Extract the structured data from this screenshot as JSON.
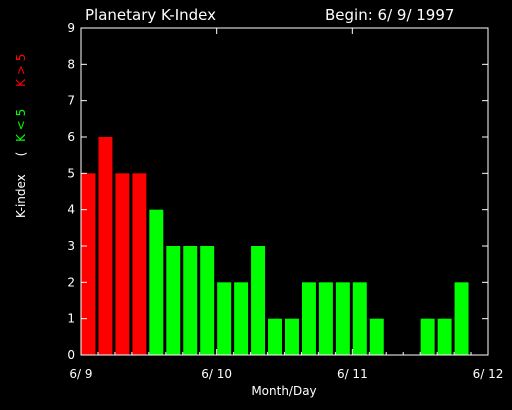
{
  "chart_data": {
    "type": "bar",
    "title": "Planetary K-Index",
    "begin_label": "Begin: 6/ 9/ 1997",
    "xlabel": "Month/Day",
    "ylabel": {
      "main": "K-index",
      "open_paren": "(",
      "low": "K < 5",
      "high": "K > 5",
      "close_paren": ""
    },
    "colors": {
      "low": "#00ff00",
      "high": "#ff0000",
      "axes": "#ffffff",
      "background": "#000000"
    },
    "threshold": 5,
    "interval_hours": 3,
    "x_range_hours": [
      0,
      72
    ],
    "ylim": [
      0,
      9
    ],
    "yticks": [
      "0",
      "1",
      "2",
      "3",
      "4",
      "5",
      "6",
      "7",
      "8",
      "9"
    ],
    "xticks": [
      {
        "hours": 0,
        "label": "6/ 9"
      },
      {
        "hours": 24,
        "label": "6/ 10"
      },
      {
        "hours": 48,
        "label": "6/ 11"
      },
      {
        "hours": 72,
        "label": "6/ 12"
      }
    ],
    "values": [
      5,
      6,
      5,
      5,
      4,
      3,
      3,
      3,
      2,
      2,
      3,
      1,
      1,
      2,
      2,
      2,
      2,
      1,
      0,
      0,
      1,
      1,
      2,
      0
    ]
  }
}
